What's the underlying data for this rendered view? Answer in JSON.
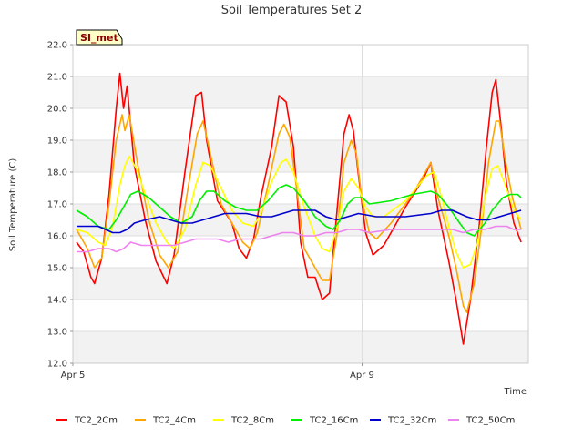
{
  "chart_data": {
    "type": "line",
    "title": "Soil Temperatures Set 2",
    "xlabel": "Time",
    "ylabel": "Soil Temperature (C)",
    "ylim": [
      12.0,
      22.0
    ],
    "xlim": [
      0,
      6.3
    ],
    "yticks": [
      "12.0",
      "13.0",
      "14.0",
      "15.0",
      "16.0",
      "17.0",
      "18.0",
      "19.0",
      "20.0",
      "21.0",
      "22.0"
    ],
    "xticks": [
      {
        "label": "Apr 5",
        "x": 0
      },
      {
        "label": "Apr 9",
        "x": 4
      }
    ],
    "grid": true,
    "banded_background": true,
    "legend_position": "bottom",
    "annotation": "SI_met",
    "series": [
      {
        "name": "TC2_2Cm",
        "color": "#ff0000",
        "points": [
          [
            0.05,
            15.8
          ],
          [
            0.15,
            15.5
          ],
          [
            0.25,
            14.7
          ],
          [
            0.3,
            14.5
          ],
          [
            0.4,
            15.3
          ],
          [
            0.5,
            17.3
          ],
          [
            0.6,
            20.0
          ],
          [
            0.65,
            21.1
          ],
          [
            0.7,
            20.0
          ],
          [
            0.75,
            20.7
          ],
          [
            0.85,
            18.2
          ],
          [
            1.0,
            16.5
          ],
          [
            1.15,
            15.2
          ],
          [
            1.3,
            14.5
          ],
          [
            1.4,
            15.4
          ],
          [
            1.55,
            18.0
          ],
          [
            1.7,
            20.4
          ],
          [
            1.78,
            20.5
          ],
          [
            1.85,
            19.0
          ],
          [
            2.0,
            17.1
          ],
          [
            2.2,
            16.4
          ],
          [
            2.3,
            15.6
          ],
          [
            2.4,
            15.3
          ],
          [
            2.5,
            15.9
          ],
          [
            2.6,
            17.2
          ],
          [
            2.75,
            18.8
          ],
          [
            2.85,
            20.4
          ],
          [
            2.95,
            20.2
          ],
          [
            3.05,
            18.8
          ],
          [
            3.15,
            15.8
          ],
          [
            3.25,
            14.7
          ],
          [
            3.35,
            14.7
          ],
          [
            3.45,
            14.0
          ],
          [
            3.55,
            14.2
          ],
          [
            3.65,
            16.7
          ],
          [
            3.75,
            19.2
          ],
          [
            3.82,
            19.8
          ],
          [
            3.88,
            19.3
          ],
          [
            3.95,
            17.9
          ],
          [
            4.05,
            16.1
          ],
          [
            4.15,
            15.4
          ],
          [
            4.3,
            15.7
          ],
          [
            4.6,
            16.9
          ],
          [
            4.85,
            17.8
          ],
          [
            4.95,
            18.3
          ],
          [
            5.05,
            16.8
          ],
          [
            5.2,
            15.2
          ],
          [
            5.3,
            14.0
          ],
          [
            5.4,
            12.6
          ],
          [
            5.5,
            14.0
          ],
          [
            5.62,
            16.3
          ],
          [
            5.72,
            18.8
          ],
          [
            5.8,
            20.5
          ],
          [
            5.85,
            20.9
          ],
          [
            5.92,
            19.5
          ],
          [
            6.0,
            17.6
          ],
          [
            6.1,
            16.4
          ],
          [
            6.2,
            15.8
          ]
        ]
      },
      {
        "name": "TC2_4Cm",
        "color": "#ffa500",
        "points": [
          [
            0.05,
            16.2
          ],
          [
            0.2,
            15.6
          ],
          [
            0.3,
            15.0
          ],
          [
            0.4,
            15.3
          ],
          [
            0.5,
            17.0
          ],
          [
            0.6,
            19.0
          ],
          [
            0.68,
            19.8
          ],
          [
            0.72,
            19.3
          ],
          [
            0.78,
            19.8
          ],
          [
            0.9,
            18.2
          ],
          [
            1.05,
            16.5
          ],
          [
            1.2,
            15.4
          ],
          [
            1.32,
            15.0
          ],
          [
            1.45,
            15.5
          ],
          [
            1.6,
            17.6
          ],
          [
            1.72,
            19.2
          ],
          [
            1.8,
            19.6
          ],
          [
            1.9,
            18.6
          ],
          [
            2.05,
            17.0
          ],
          [
            2.2,
            16.4
          ],
          [
            2.35,
            15.8
          ],
          [
            2.45,
            15.6
          ],
          [
            2.55,
            16.1
          ],
          [
            2.7,
            17.6
          ],
          [
            2.85,
            19.2
          ],
          [
            2.92,
            19.5
          ],
          [
            3.0,
            19.1
          ],
          [
            3.1,
            17.4
          ],
          [
            3.2,
            15.6
          ],
          [
            3.35,
            15.0
          ],
          [
            3.45,
            14.6
          ],
          [
            3.55,
            14.6
          ],
          [
            3.65,
            16.0
          ],
          [
            3.75,
            18.3
          ],
          [
            3.85,
            19.0
          ],
          [
            3.92,
            18.6
          ],
          [
            4.0,
            17.1
          ],
          [
            4.1,
            16.1
          ],
          [
            4.2,
            15.9
          ],
          [
            4.4,
            16.4
          ],
          [
            4.7,
            17.3
          ],
          [
            4.95,
            18.3
          ],
          [
            5.05,
            17.2
          ],
          [
            5.2,
            16.0
          ],
          [
            5.3,
            15.0
          ],
          [
            5.4,
            13.8
          ],
          [
            5.45,
            13.6
          ],
          [
            5.55,
            14.5
          ],
          [
            5.65,
            16.2
          ],
          [
            5.75,
            18.3
          ],
          [
            5.85,
            19.6
          ],
          [
            5.9,
            19.6
          ],
          [
            5.98,
            18.4
          ],
          [
            6.08,
            17.2
          ],
          [
            6.2,
            16.2
          ]
        ]
      },
      {
        "name": "TC2_8Cm",
        "color": "#ffff00",
        "points": [
          [
            0.05,
            16.2
          ],
          [
            0.2,
            16.1
          ],
          [
            0.35,
            15.8
          ],
          [
            0.45,
            15.7
          ],
          [
            0.55,
            16.3
          ],
          [
            0.65,
            17.6
          ],
          [
            0.72,
            18.2
          ],
          [
            0.78,
            18.5
          ],
          [
            0.88,
            18.1
          ],
          [
            1.0,
            17.3
          ],
          [
            1.15,
            16.4
          ],
          [
            1.3,
            15.8
          ],
          [
            1.4,
            15.6
          ],
          [
            1.55,
            16.2
          ],
          [
            1.7,
            17.6
          ],
          [
            1.8,
            18.3
          ],
          [
            1.9,
            18.2
          ],
          [
            2.05,
            17.5
          ],
          [
            2.2,
            16.8
          ],
          [
            2.35,
            16.4
          ],
          [
            2.5,
            16.3
          ],
          [
            2.6,
            16.7
          ],
          [
            2.75,
            17.7
          ],
          [
            2.88,
            18.3
          ],
          [
            2.95,
            18.4
          ],
          [
            3.05,
            18.0
          ],
          [
            3.2,
            16.9
          ],
          [
            3.35,
            16.0
          ],
          [
            3.45,
            15.6
          ],
          [
            3.55,
            15.5
          ],
          [
            3.65,
            16.2
          ],
          [
            3.75,
            17.4
          ],
          [
            3.85,
            17.8
          ],
          [
            3.95,
            17.5
          ],
          [
            4.05,
            16.9
          ],
          [
            4.15,
            16.6
          ],
          [
            4.3,
            16.6
          ],
          [
            4.6,
            17.1
          ],
          [
            4.9,
            17.9
          ],
          [
            5.0,
            18.0
          ],
          [
            5.1,
            17.2
          ],
          [
            5.2,
            16.3
          ],
          [
            5.3,
            15.5
          ],
          [
            5.4,
            15.0
          ],
          [
            5.5,
            15.1
          ],
          [
            5.6,
            15.8
          ],
          [
            5.7,
            17.2
          ],
          [
            5.8,
            18.1
          ],
          [
            5.88,
            18.2
          ],
          [
            5.98,
            17.6
          ],
          [
            6.1,
            16.8
          ],
          [
            6.2,
            16.5
          ]
        ]
      },
      {
        "name": "TC2_16Cm",
        "color": "#00ee00",
        "points": [
          [
            0.05,
            16.8
          ],
          [
            0.2,
            16.6
          ],
          [
            0.35,
            16.3
          ],
          [
            0.5,
            16.2
          ],
          [
            0.6,
            16.5
          ],
          [
            0.7,
            16.9
          ],
          [
            0.8,
            17.3
          ],
          [
            0.9,
            17.4
          ],
          [
            1.05,
            17.2
          ],
          [
            1.2,
            16.9
          ],
          [
            1.35,
            16.6
          ],
          [
            1.5,
            16.4
          ],
          [
            1.65,
            16.6
          ],
          [
            1.75,
            17.1
          ],
          [
            1.85,
            17.4
          ],
          [
            1.95,
            17.4
          ],
          [
            2.1,
            17.1
          ],
          [
            2.25,
            16.9
          ],
          [
            2.4,
            16.8
          ],
          [
            2.55,
            16.8
          ],
          [
            2.7,
            17.1
          ],
          [
            2.85,
            17.5
          ],
          [
            2.95,
            17.6
          ],
          [
            3.05,
            17.5
          ],
          [
            3.2,
            17.1
          ],
          [
            3.35,
            16.6
          ],
          [
            3.5,
            16.3
          ],
          [
            3.6,
            16.2
          ],
          [
            3.7,
            16.5
          ],
          [
            3.8,
            17.0
          ],
          [
            3.9,
            17.2
          ],
          [
            4.0,
            17.2
          ],
          [
            4.1,
            17.0
          ],
          [
            4.4,
            17.1
          ],
          [
            4.7,
            17.3
          ],
          [
            4.95,
            17.4
          ],
          [
            5.05,
            17.3
          ],
          [
            5.2,
            16.9
          ],
          [
            5.35,
            16.4
          ],
          [
            5.45,
            16.1
          ],
          [
            5.55,
            16.0
          ],
          [
            5.7,
            16.4
          ],
          [
            5.8,
            16.8
          ],
          [
            5.95,
            17.2
          ],
          [
            6.05,
            17.3
          ],
          [
            6.15,
            17.3
          ],
          [
            6.2,
            17.2
          ]
        ]
      },
      {
        "name": "TC2_32Cm",
        "color": "#0000cc",
        "points": [
          [
            0.05,
            16.3
          ],
          [
            0.2,
            16.3
          ],
          [
            0.35,
            16.3
          ],
          [
            0.45,
            16.2
          ],
          [
            0.55,
            16.1
          ],
          [
            0.65,
            16.1
          ],
          [
            0.75,
            16.2
          ],
          [
            0.85,
            16.4
          ],
          [
            1.0,
            16.5
          ],
          [
            1.2,
            16.6
          ],
          [
            1.35,
            16.5
          ],
          [
            1.5,
            16.4
          ],
          [
            1.65,
            16.4
          ],
          [
            1.8,
            16.5
          ],
          [
            1.95,
            16.6
          ],
          [
            2.1,
            16.7
          ],
          [
            2.25,
            16.7
          ],
          [
            2.4,
            16.7
          ],
          [
            2.6,
            16.6
          ],
          [
            2.75,
            16.6
          ],
          [
            2.9,
            16.7
          ],
          [
            3.05,
            16.8
          ],
          [
            3.2,
            16.8
          ],
          [
            3.35,
            16.8
          ],
          [
            3.5,
            16.6
          ],
          [
            3.65,
            16.5
          ],
          [
            3.8,
            16.6
          ],
          [
            3.95,
            16.7
          ],
          [
            4.2,
            16.6
          ],
          [
            4.6,
            16.6
          ],
          [
            4.95,
            16.7
          ],
          [
            5.1,
            16.8
          ],
          [
            5.25,
            16.8
          ],
          [
            5.35,
            16.7
          ],
          [
            5.45,
            16.6
          ],
          [
            5.6,
            16.5
          ],
          [
            5.75,
            16.5
          ],
          [
            5.9,
            16.6
          ],
          [
            6.05,
            16.7
          ],
          [
            6.2,
            16.8
          ]
        ]
      },
      {
        "name": "TC2_50Cm",
        "color": "#ee82ee",
        "points": [
          [
            0.05,
            15.5
          ],
          [
            0.2,
            15.5
          ],
          [
            0.35,
            15.6
          ],
          [
            0.5,
            15.6
          ],
          [
            0.6,
            15.5
          ],
          [
            0.7,
            15.6
          ],
          [
            0.8,
            15.8
          ],
          [
            0.95,
            15.7
          ],
          [
            1.1,
            15.7
          ],
          [
            1.25,
            15.7
          ],
          [
            1.4,
            15.7
          ],
          [
            1.55,
            15.8
          ],
          [
            1.7,
            15.9
          ],
          [
            1.85,
            15.9
          ],
          [
            2.0,
            15.9
          ],
          [
            2.15,
            15.8
          ],
          [
            2.3,
            15.9
          ],
          [
            2.45,
            15.9
          ],
          [
            2.6,
            15.9
          ],
          [
            2.75,
            16.0
          ],
          [
            2.9,
            16.1
          ],
          [
            3.05,
            16.1
          ],
          [
            3.2,
            16.0
          ],
          [
            3.35,
            16.0
          ],
          [
            3.5,
            16.1
          ],
          [
            3.65,
            16.1
          ],
          [
            3.8,
            16.2
          ],
          [
            3.95,
            16.2
          ],
          [
            4.1,
            16.1
          ],
          [
            4.4,
            16.2
          ],
          [
            4.7,
            16.2
          ],
          [
            4.95,
            16.2
          ],
          [
            5.1,
            16.2
          ],
          [
            5.25,
            16.2
          ],
          [
            5.4,
            16.1
          ],
          [
            5.55,
            16.2
          ],
          [
            5.7,
            16.2
          ],
          [
            5.85,
            16.3
          ],
          [
            6.0,
            16.3
          ],
          [
            6.1,
            16.2
          ],
          [
            6.2,
            16.2
          ]
        ]
      }
    ]
  }
}
